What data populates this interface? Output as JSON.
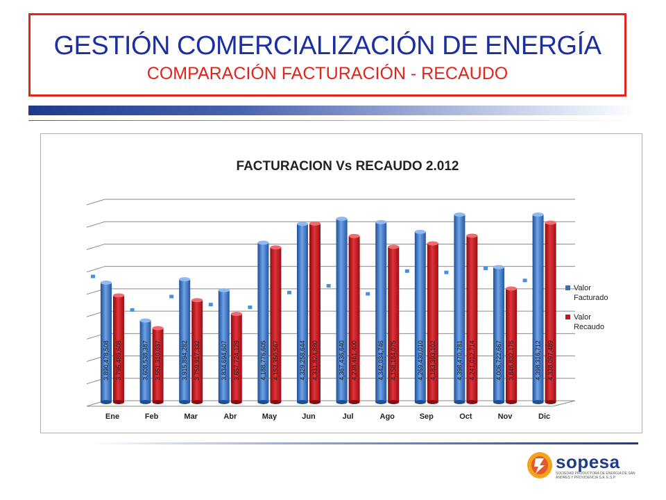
{
  "header": {
    "title": "GESTIÓN COMERCIALIZACIÓN DE ENERGÍA",
    "subtitle": "COMPARACIÓN FACTURACIÓN - RECAUDO"
  },
  "logo": {
    "name": "sopesa",
    "tagline": "SOCIEDAD PRODUCTORA DE ENERGIA DE SAN ANDRES Y PROVIDENCIA S.A. E.S.P."
  },
  "colors": {
    "title_blue": "#1b2fa3",
    "accent_red": "#e3241b",
    "series_facturado": "#2f6fc4",
    "series_recaudo": "#c4161c"
  },
  "chart_data": {
    "type": "bar",
    "title": "FACTURACION  Vs RECAUDO  2.012",
    "categories": [
      "Ene",
      "Feb",
      "Mar",
      "Abr",
      "May",
      "Jun",
      "Jul",
      "Ago",
      "Sep",
      "Oct",
      "Nov",
      "Dic"
    ],
    "series": [
      {
        "name": "Valor Facturado",
        "values": [
          3890478508,
          3608538387,
          3915894282,
          3834694607,
          4188776605,
          4329258644,
          4367436640,
          4342034746,
          4269430010,
          4398470781,
          4006722667,
          4398316712
        ],
        "labels": [
          "3,890,478,508",
          "3,608,538,387",
          "3,915,894,282",
          "3,834,694,607",
          "4,188,776,605",
          "4,329,258,644",
          "4,367,436,640",
          "4,342,034,746",
          "4,269,430,010",
          "4,398,470,781",
          "4,006,722,667",
          "4,398,316,712"
        ]
      },
      {
        "name": "Valor Recaudo",
        "values": [
          3795489608,
          3551310037,
          3759917332,
          3657724129,
          4153350567,
          4331824880,
          4238461400,
          4158184075,
          4183393102,
          4241012714,
          3846832175,
          4338097489
        ],
        "labels": [
          "3,795,489,608",
          "3,551,310,037",
          "3,759,917,332",
          "3,657,724,129",
          "4,153,350,567",
          "4,331,824,880",
          "4,238,461,400",
          "4,158,184,075",
          "4,183,393,102",
          "4,241,012,714",
          "3,846,832,175",
          "4,338,097,489"
        ]
      }
    ],
    "legend": [
      "Valor Facturado",
      "Valor Recaudo"
    ],
    "legend_position": "right",
    "grid": true,
    "view": "3d-clustered-column"
  }
}
